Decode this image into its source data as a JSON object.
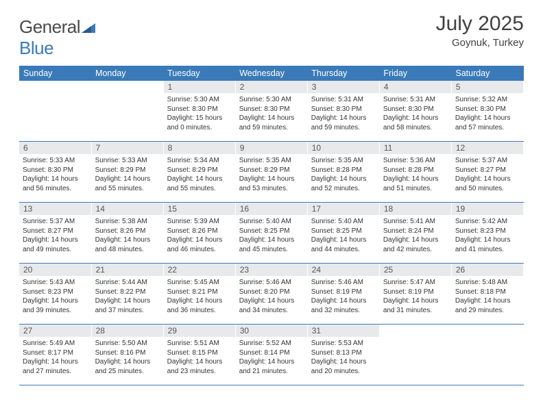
{
  "brand": {
    "part1": "General",
    "part2": "Blue"
  },
  "title": "July 2025",
  "location": "Goynuk, Turkey",
  "colors": {
    "accent": "#3a7ab8",
    "header_bg": "#3a7ab8",
    "daynum_bg": "#e8e9eb",
    "text": "#333333"
  },
  "weekdays": [
    "Sunday",
    "Monday",
    "Tuesday",
    "Wednesday",
    "Thursday",
    "Friday",
    "Saturday"
  ],
  "weeks": [
    [
      null,
      null,
      {
        "n": "1",
        "sunrise": "Sunrise: 5:30 AM",
        "sunset": "Sunset: 8:30 PM",
        "day1": "Daylight: 15 hours",
        "day2": "and 0 minutes."
      },
      {
        "n": "2",
        "sunrise": "Sunrise: 5:30 AM",
        "sunset": "Sunset: 8:30 PM",
        "day1": "Daylight: 14 hours",
        "day2": "and 59 minutes."
      },
      {
        "n": "3",
        "sunrise": "Sunrise: 5:31 AM",
        "sunset": "Sunset: 8:30 PM",
        "day1": "Daylight: 14 hours",
        "day2": "and 59 minutes."
      },
      {
        "n": "4",
        "sunrise": "Sunrise: 5:31 AM",
        "sunset": "Sunset: 8:30 PM",
        "day1": "Daylight: 14 hours",
        "day2": "and 58 minutes."
      },
      {
        "n": "5",
        "sunrise": "Sunrise: 5:32 AM",
        "sunset": "Sunset: 8:30 PM",
        "day1": "Daylight: 14 hours",
        "day2": "and 57 minutes."
      }
    ],
    [
      {
        "n": "6",
        "sunrise": "Sunrise: 5:33 AM",
        "sunset": "Sunset: 8:30 PM",
        "day1": "Daylight: 14 hours",
        "day2": "and 56 minutes."
      },
      {
        "n": "7",
        "sunrise": "Sunrise: 5:33 AM",
        "sunset": "Sunset: 8:29 PM",
        "day1": "Daylight: 14 hours",
        "day2": "and 55 minutes."
      },
      {
        "n": "8",
        "sunrise": "Sunrise: 5:34 AM",
        "sunset": "Sunset: 8:29 PM",
        "day1": "Daylight: 14 hours",
        "day2": "and 55 minutes."
      },
      {
        "n": "9",
        "sunrise": "Sunrise: 5:35 AM",
        "sunset": "Sunset: 8:29 PM",
        "day1": "Daylight: 14 hours",
        "day2": "and 53 minutes."
      },
      {
        "n": "10",
        "sunrise": "Sunrise: 5:35 AM",
        "sunset": "Sunset: 8:28 PM",
        "day1": "Daylight: 14 hours",
        "day2": "and 52 minutes."
      },
      {
        "n": "11",
        "sunrise": "Sunrise: 5:36 AM",
        "sunset": "Sunset: 8:28 PM",
        "day1": "Daylight: 14 hours",
        "day2": "and 51 minutes."
      },
      {
        "n": "12",
        "sunrise": "Sunrise: 5:37 AM",
        "sunset": "Sunset: 8:27 PM",
        "day1": "Daylight: 14 hours",
        "day2": "and 50 minutes."
      }
    ],
    [
      {
        "n": "13",
        "sunrise": "Sunrise: 5:37 AM",
        "sunset": "Sunset: 8:27 PM",
        "day1": "Daylight: 14 hours",
        "day2": "and 49 minutes."
      },
      {
        "n": "14",
        "sunrise": "Sunrise: 5:38 AM",
        "sunset": "Sunset: 8:26 PM",
        "day1": "Daylight: 14 hours",
        "day2": "and 48 minutes."
      },
      {
        "n": "15",
        "sunrise": "Sunrise: 5:39 AM",
        "sunset": "Sunset: 8:26 PM",
        "day1": "Daylight: 14 hours",
        "day2": "and 46 minutes."
      },
      {
        "n": "16",
        "sunrise": "Sunrise: 5:40 AM",
        "sunset": "Sunset: 8:25 PM",
        "day1": "Daylight: 14 hours",
        "day2": "and 45 minutes."
      },
      {
        "n": "17",
        "sunrise": "Sunrise: 5:40 AM",
        "sunset": "Sunset: 8:25 PM",
        "day1": "Daylight: 14 hours",
        "day2": "and 44 minutes."
      },
      {
        "n": "18",
        "sunrise": "Sunrise: 5:41 AM",
        "sunset": "Sunset: 8:24 PM",
        "day1": "Daylight: 14 hours",
        "day2": "and 42 minutes."
      },
      {
        "n": "19",
        "sunrise": "Sunrise: 5:42 AM",
        "sunset": "Sunset: 8:23 PM",
        "day1": "Daylight: 14 hours",
        "day2": "and 41 minutes."
      }
    ],
    [
      {
        "n": "20",
        "sunrise": "Sunrise: 5:43 AM",
        "sunset": "Sunset: 8:23 PM",
        "day1": "Daylight: 14 hours",
        "day2": "and 39 minutes."
      },
      {
        "n": "21",
        "sunrise": "Sunrise: 5:44 AM",
        "sunset": "Sunset: 8:22 PM",
        "day1": "Daylight: 14 hours",
        "day2": "and 37 minutes."
      },
      {
        "n": "22",
        "sunrise": "Sunrise: 5:45 AM",
        "sunset": "Sunset: 8:21 PM",
        "day1": "Daylight: 14 hours",
        "day2": "and 36 minutes."
      },
      {
        "n": "23",
        "sunrise": "Sunrise: 5:46 AM",
        "sunset": "Sunset: 8:20 PM",
        "day1": "Daylight: 14 hours",
        "day2": "and 34 minutes."
      },
      {
        "n": "24",
        "sunrise": "Sunrise: 5:46 AM",
        "sunset": "Sunset: 8:19 PM",
        "day1": "Daylight: 14 hours",
        "day2": "and 32 minutes."
      },
      {
        "n": "25",
        "sunrise": "Sunrise: 5:47 AM",
        "sunset": "Sunset: 8:19 PM",
        "day1": "Daylight: 14 hours",
        "day2": "and 31 minutes."
      },
      {
        "n": "26",
        "sunrise": "Sunrise: 5:48 AM",
        "sunset": "Sunset: 8:18 PM",
        "day1": "Daylight: 14 hours",
        "day2": "and 29 minutes."
      }
    ],
    [
      {
        "n": "27",
        "sunrise": "Sunrise: 5:49 AM",
        "sunset": "Sunset: 8:17 PM",
        "day1": "Daylight: 14 hours",
        "day2": "and 27 minutes."
      },
      {
        "n": "28",
        "sunrise": "Sunrise: 5:50 AM",
        "sunset": "Sunset: 8:16 PM",
        "day1": "Daylight: 14 hours",
        "day2": "and 25 minutes."
      },
      {
        "n": "29",
        "sunrise": "Sunrise: 5:51 AM",
        "sunset": "Sunset: 8:15 PM",
        "day1": "Daylight: 14 hours",
        "day2": "and 23 minutes."
      },
      {
        "n": "30",
        "sunrise": "Sunrise: 5:52 AM",
        "sunset": "Sunset: 8:14 PM",
        "day1": "Daylight: 14 hours",
        "day2": "and 21 minutes."
      },
      {
        "n": "31",
        "sunrise": "Sunrise: 5:53 AM",
        "sunset": "Sunset: 8:13 PM",
        "day1": "Daylight: 14 hours",
        "day2": "and 20 minutes."
      },
      null,
      null
    ]
  ]
}
